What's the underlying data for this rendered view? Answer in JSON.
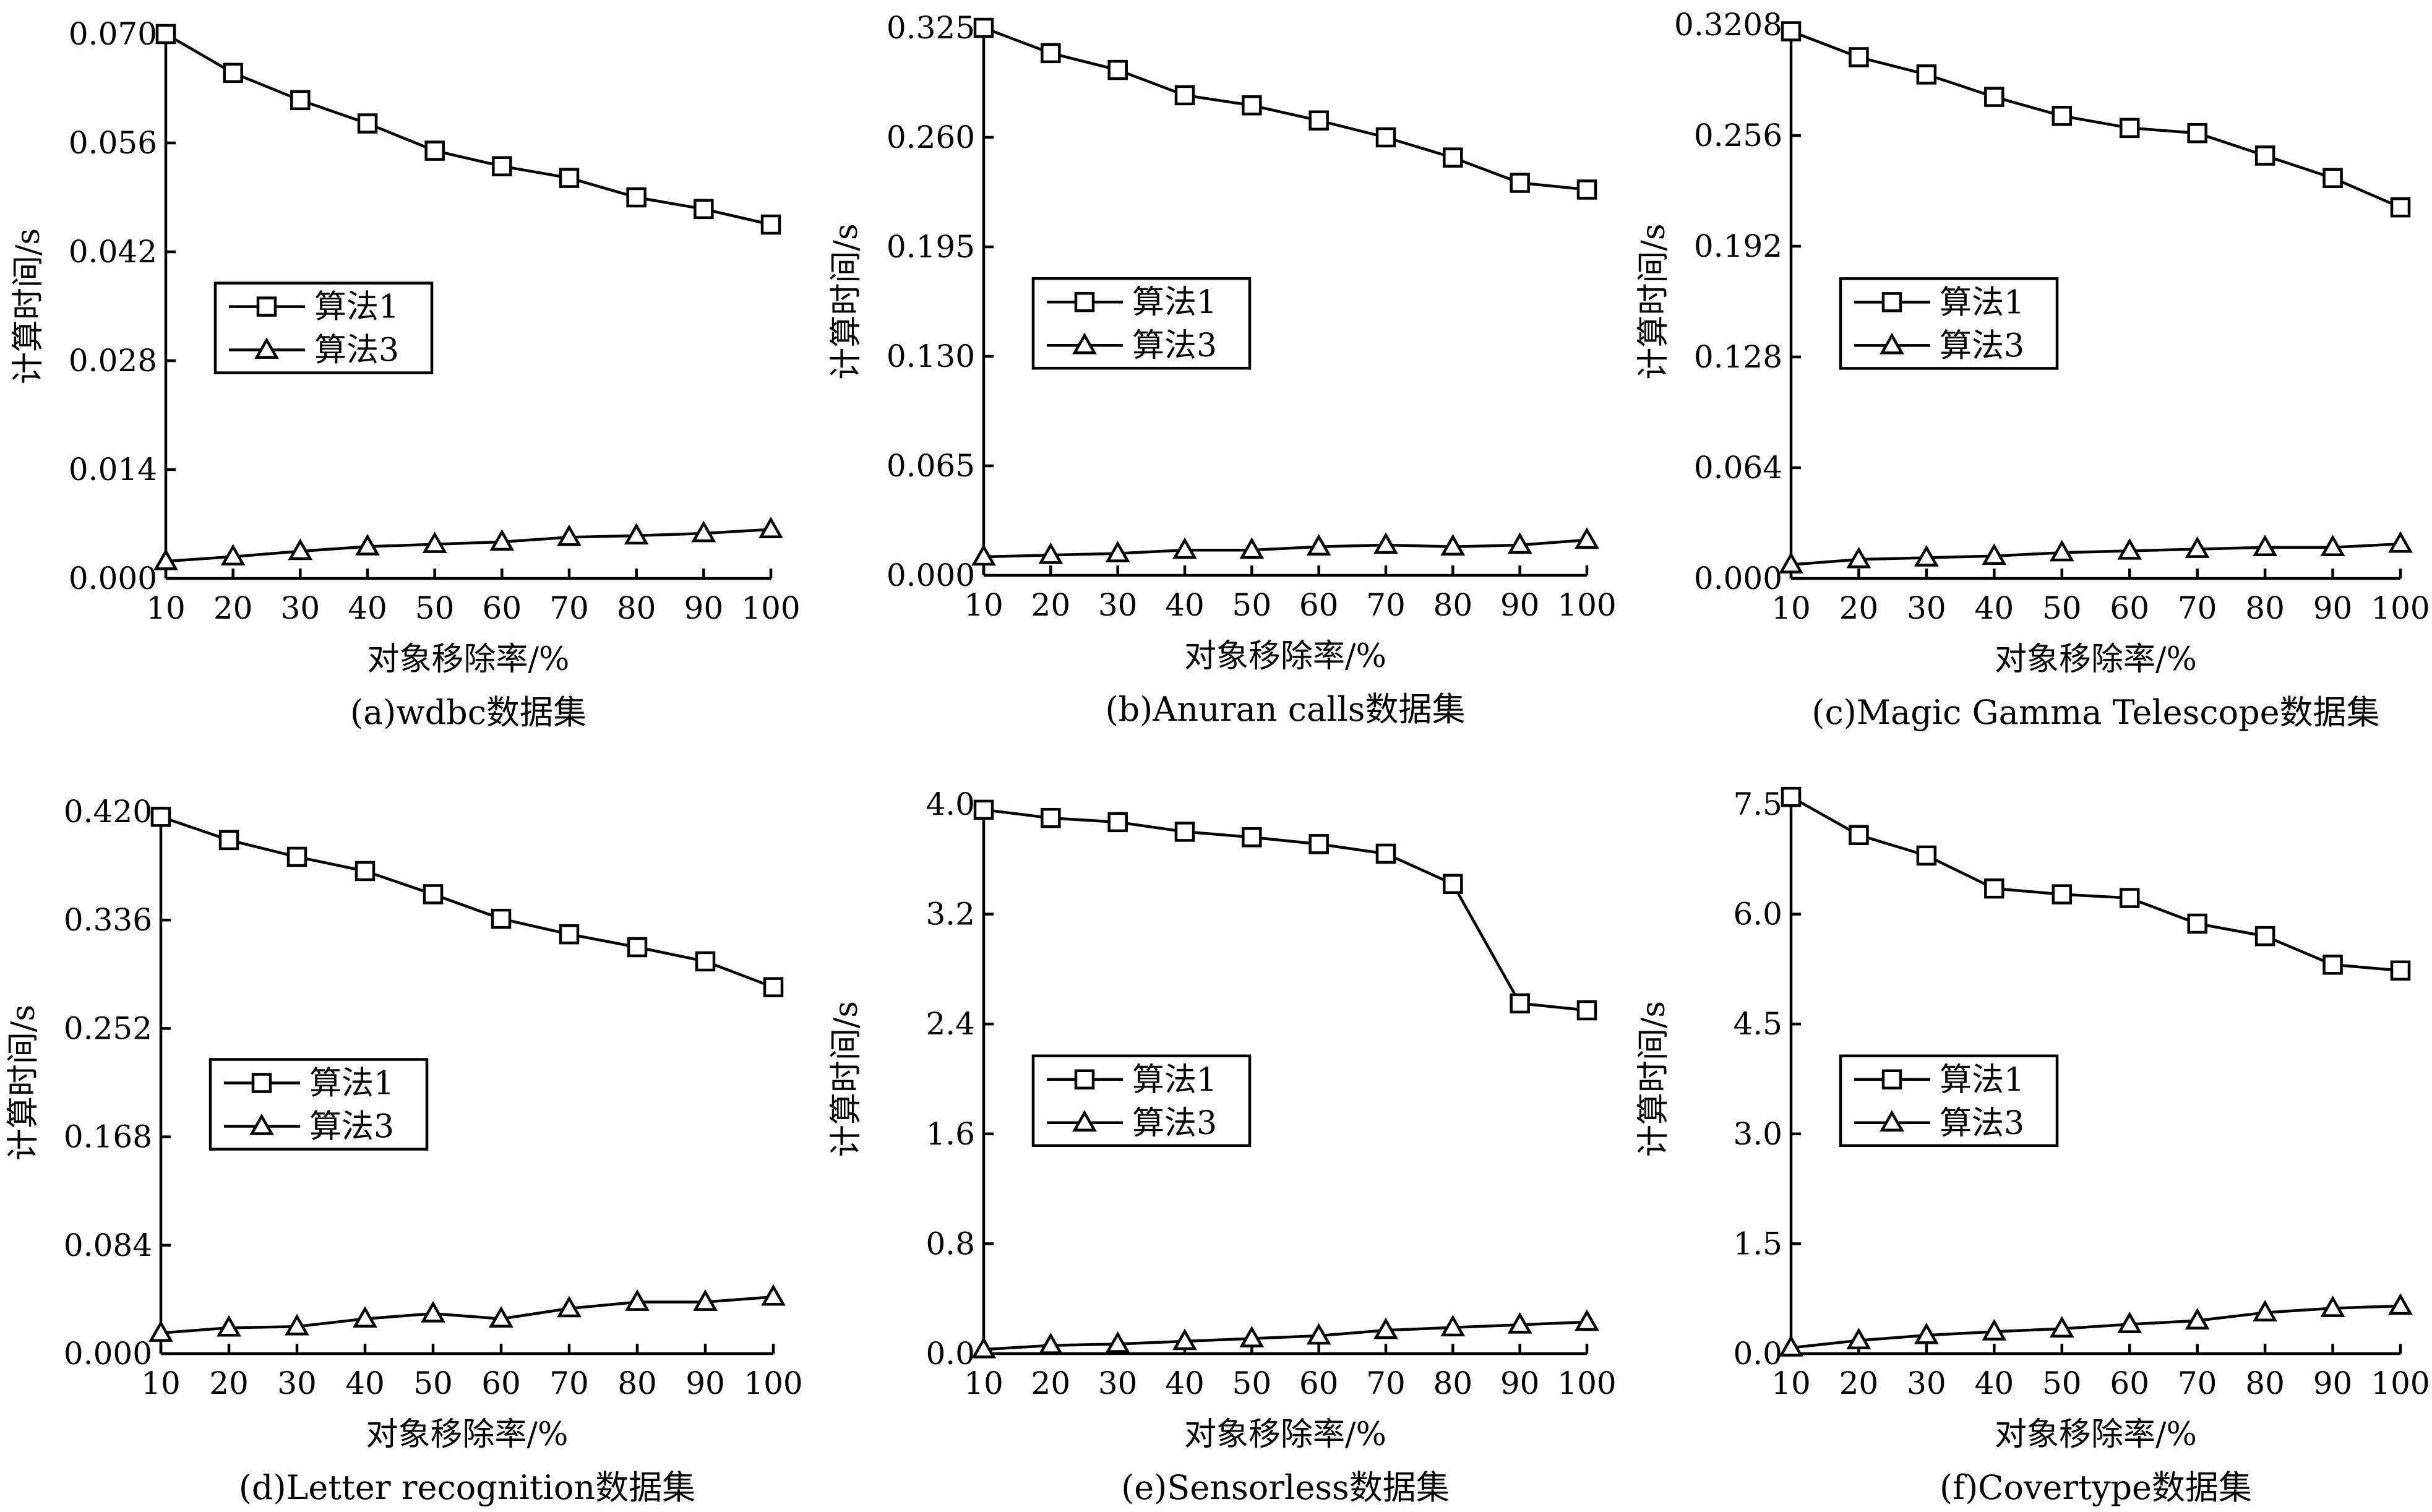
{
  "chart_data": [
    {
      "type": "line",
      "caption": "(a)wdbc数据集",
      "xlabel": "对象移除率/%",
      "ylabel": "计算时间/s",
      "x": [
        10,
        20,
        30,
        40,
        50,
        60,
        70,
        80,
        90,
        100
      ],
      "xlim": [
        10,
        100
      ],
      "ylim": [
        0,
        0.07
      ],
      "yticks": [
        "0.000",
        "0.014",
        "0.028",
        "0.042",
        "0.056",
        "0.070"
      ],
      "series": [
        {
          "name": "算法1",
          "marker": "square",
          "values": [
            0.07,
            0.065,
            0.0615,
            0.0585,
            0.055,
            0.053,
            0.0515,
            0.049,
            0.0475,
            0.0455
          ]
        },
        {
          "name": "算法3",
          "marker": "triangle",
          "values": [
            0.0022,
            0.0028,
            0.0035,
            0.0041,
            0.0044,
            0.0047,
            0.0053,
            0.0055,
            0.0058,
            0.0063
          ]
        }
      ],
      "legend": "middle-left",
      "grid": false
    },
    {
      "type": "line",
      "caption": "(b)Anuran calls数据集",
      "xlabel": "对象移除率/%",
      "ylabel": "计算时间/s",
      "x": [
        10,
        20,
        30,
        40,
        50,
        60,
        70,
        80,
        90,
        100
      ],
      "xlim": [
        10,
        100
      ],
      "ylim": [
        0,
        0.325
      ],
      "yticks": [
        "0.000",
        "0.065",
        "0.130",
        "0.195",
        "0.260",
        "0.325"
      ],
      "series": [
        {
          "name": "算法1",
          "marker": "square",
          "values": [
            0.325,
            0.31,
            0.3,
            0.285,
            0.279,
            0.27,
            0.26,
            0.248,
            0.233,
            0.229
          ]
        },
        {
          "name": "算法3",
          "marker": "triangle",
          "values": [
            0.011,
            0.012,
            0.013,
            0.015,
            0.015,
            0.017,
            0.018,
            0.017,
            0.018,
            0.021
          ]
        }
      ],
      "legend": "middle-left",
      "grid": false
    },
    {
      "type": "line",
      "caption": "(c)Magic Gamma Telescope数据集",
      "xlabel": "对象移除率/%",
      "ylabel": "计算时间/s",
      "x": [
        10,
        20,
        30,
        40,
        50,
        60,
        70,
        80,
        90,
        100
      ],
      "xlim": [
        10,
        100
      ],
      "ylim": [
        0,
        0.3208
      ],
      "yticks": [
        "0.000",
        "0.064",
        "0.128",
        "0.192",
        "0.256",
        "0.3208"
      ],
      "series": [
        {
          "name": "算法1",
          "marker": "square",
          "values": [
            0.317,
            0.302,
            0.292,
            0.279,
            0.268,
            0.261,
            0.258,
            0.245,
            0.232,
            0.215
          ]
        },
        {
          "name": "算法3",
          "marker": "triangle",
          "values": [
            0.008,
            0.011,
            0.012,
            0.013,
            0.015,
            0.016,
            0.017,
            0.018,
            0.018,
            0.02
          ]
        }
      ],
      "legend": "middle-left",
      "grid": false
    },
    {
      "type": "line",
      "caption": "(d)Letter recognition数据集",
      "xlabel": "对象移除率/%",
      "ylabel": "计算时间/s",
      "x": [
        10,
        20,
        30,
        40,
        50,
        60,
        70,
        80,
        90,
        100
      ],
      "xlim": [
        10,
        100
      ],
      "ylim": [
        0,
        0.42
      ],
      "yticks": [
        "0.000",
        "0.084",
        "0.168",
        "0.252",
        "0.336",
        "0.420"
      ],
      "series": [
        {
          "name": "算法1",
          "marker": "square",
          "values": [
            0.416,
            0.398,
            0.385,
            0.374,
            0.356,
            0.337,
            0.325,
            0.315,
            0.304,
            0.284
          ]
        },
        {
          "name": "算法3",
          "marker": "triangle",
          "values": [
            0.016,
            0.02,
            0.021,
            0.027,
            0.031,
            0.027,
            0.035,
            0.04,
            0.04,
            0.044
          ]
        }
      ],
      "legend": "middle-left",
      "grid": false
    },
    {
      "type": "line",
      "caption": "(e)Sensorless数据集",
      "xlabel": "对象移除率/%",
      "ylabel": "计算时间/s",
      "x": [
        10,
        20,
        30,
        40,
        50,
        60,
        70,
        80,
        90,
        100
      ],
      "xlim": [
        10,
        100
      ],
      "ylim": [
        0,
        4.0
      ],
      "yticks": [
        "0.0",
        "0.8",
        "1.6",
        "2.4",
        "3.2",
        "4.0"
      ],
      "series": [
        {
          "name": "算法1",
          "marker": "square",
          "values": [
            3.96,
            3.9,
            3.87,
            3.8,
            3.76,
            3.71,
            3.64,
            3.42,
            2.55,
            2.5
          ]
        },
        {
          "name": "算法3",
          "marker": "triangle",
          "values": [
            0.03,
            0.06,
            0.07,
            0.09,
            0.11,
            0.13,
            0.17,
            0.19,
            0.21,
            0.23
          ]
        }
      ],
      "legend": "middle-left",
      "grid": false
    },
    {
      "type": "line",
      "caption": "(f)Covertype数据集",
      "xlabel": "对象移除率/%",
      "ylabel": "计算时间/s",
      "x": [
        10,
        20,
        30,
        40,
        50,
        60,
        70,
        80,
        90,
        100
      ],
      "xlim": [
        10,
        100
      ],
      "ylim": [
        0,
        7.5
      ],
      "yticks": [
        "0.0",
        "1.5",
        "3.0",
        "4.5",
        "6.0",
        "7.5"
      ],
      "series": [
        {
          "name": "算法1",
          "marker": "square",
          "values": [
            7.6,
            7.08,
            6.8,
            6.35,
            6.27,
            6.22,
            5.87,
            5.7,
            5.31,
            5.23
          ]
        },
        {
          "name": "算法3",
          "marker": "triangle",
          "values": [
            0.08,
            0.18,
            0.25,
            0.3,
            0.34,
            0.4,
            0.45,
            0.56,
            0.62,
            0.65
          ]
        }
      ],
      "legend": "middle-left",
      "grid": false
    }
  ]
}
